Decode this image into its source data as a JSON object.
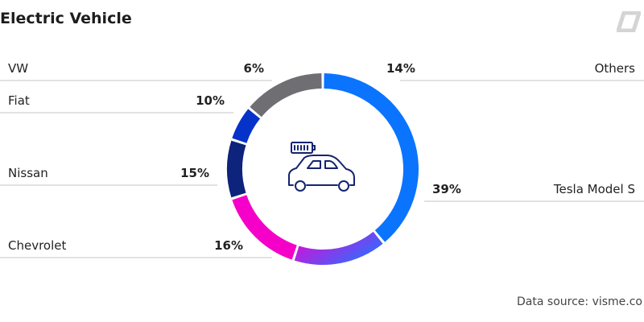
{
  "title": "Electric Vehicle",
  "source": "Data source: visme.co",
  "chart_data": {
    "type": "pie",
    "style": "donut",
    "title": "Electric Vehicle",
    "categories": [
      "Tesla Model S",
      "Chevrolet",
      "Nissan",
      "Fiat",
      "VW",
      "Others"
    ],
    "values": [
      39,
      16,
      15,
      10,
      6,
      14
    ],
    "labels": [
      "39%",
      "16%",
      "15%",
      "10%",
      "6%",
      "14%"
    ],
    "colors": [
      "#0a74ff",
      "#b03cf0",
      "#f500c8",
      "#0d237c",
      "#0533c9",
      "#6e6e73"
    ],
    "gradients": {
      "Chevrolet": [
        "#f000d0",
        "#2f6cff"
      ]
    },
    "start": "top, clockwise",
    "center_icon": "electric-car-icon"
  }
}
